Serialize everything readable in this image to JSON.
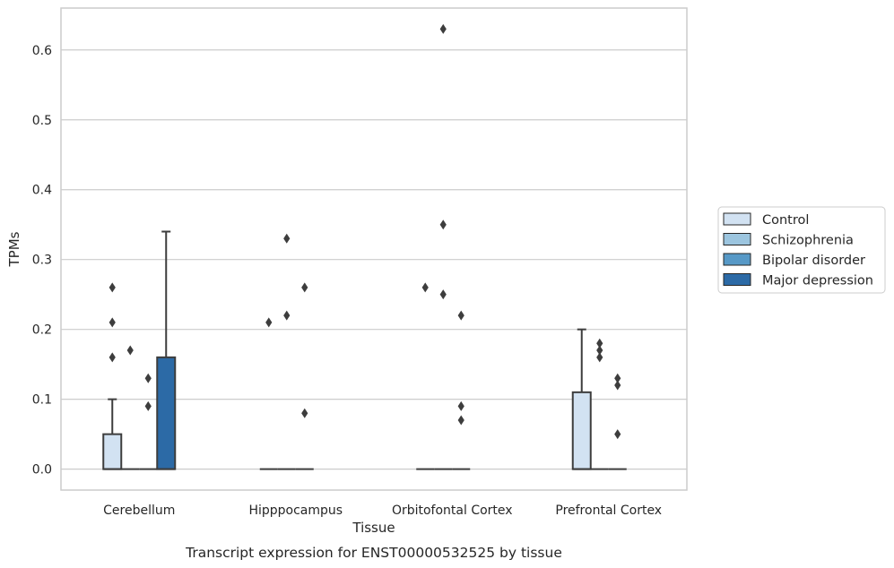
{
  "chart_data": {
    "type": "box",
    "caption": "Transcript expression for ENST00000532525 by tissue",
    "xlabel": "Tissue",
    "ylabel": "TPMs",
    "ylim": [
      -0.03,
      0.66
    ],
    "yticks": [
      0.0,
      0.1,
      0.2,
      0.3,
      0.4,
      0.5,
      0.6
    ],
    "ytick_labels": [
      "0.0",
      "0.1",
      "0.2",
      "0.3",
      "0.4",
      "0.5",
      "0.6"
    ],
    "grid": "horizontal",
    "legend_position": "right",
    "categories": [
      "Cerebellum",
      "Hipppocampus",
      "Orbitofontal Cortex",
      "Prefrontal Cortex"
    ],
    "series": [
      {
        "name": "Control",
        "color": "#d2e2f2",
        "boxes": [
          {
            "q1": 0.0,
            "median": 0.0,
            "q3": 0.05,
            "whisker_low": 0.0,
            "whisker_high": 0.1,
            "outliers": [
              0.16,
              0.21,
              0.26
            ]
          },
          {
            "q1": 0.0,
            "median": 0.0,
            "q3": 0.0,
            "whisker_low": 0.0,
            "whisker_high": 0.0,
            "outliers": [
              0.21
            ]
          },
          {
            "q1": 0.0,
            "median": 0.0,
            "q3": 0.0,
            "whisker_low": 0.0,
            "whisker_high": 0.0,
            "outliers": [
              0.26
            ]
          },
          {
            "q1": 0.0,
            "median": 0.0,
            "q3": 0.11,
            "whisker_low": 0.0,
            "whisker_high": 0.2,
            "outliers": []
          }
        ]
      },
      {
        "name": "Schizophrenia",
        "color": "#9cc5df",
        "boxes": [
          {
            "q1": 0.0,
            "median": 0.0,
            "q3": 0.0,
            "whisker_low": 0.0,
            "whisker_high": 0.0,
            "outliers": [
              0.17
            ]
          },
          {
            "q1": 0.0,
            "median": 0.0,
            "q3": 0.0,
            "whisker_low": 0.0,
            "whisker_high": 0.0,
            "outliers": [
              0.22,
              0.33
            ]
          },
          {
            "q1": 0.0,
            "median": 0.0,
            "q3": 0.0,
            "whisker_low": 0.0,
            "whisker_high": 0.0,
            "outliers": [
              0.25,
              0.35,
              0.63
            ]
          },
          {
            "q1": 0.0,
            "median": 0.0,
            "q3": 0.0,
            "whisker_low": 0.0,
            "whisker_high": 0.0,
            "outliers": [
              0.16,
              0.17,
              0.18
            ]
          }
        ]
      },
      {
        "name": "Bipolar disorder",
        "color": "#5799c7",
        "boxes": [
          {
            "q1": 0.0,
            "median": 0.0,
            "q3": 0.0,
            "whisker_low": 0.0,
            "whisker_high": 0.0,
            "outliers": [
              0.09,
              0.13
            ]
          },
          {
            "q1": 0.0,
            "median": 0.0,
            "q3": 0.0,
            "whisker_low": 0.0,
            "whisker_high": 0.0,
            "outliers": [
              0.08,
              0.26
            ]
          },
          {
            "q1": 0.0,
            "median": 0.0,
            "q3": 0.0,
            "whisker_low": 0.0,
            "whisker_high": 0.0,
            "outliers": [
              0.07,
              0.09,
              0.22
            ]
          },
          {
            "q1": 0.0,
            "median": 0.0,
            "q3": 0.0,
            "whisker_low": 0.0,
            "whisker_high": 0.0,
            "outliers": [
              0.05,
              0.12,
              0.13
            ]
          }
        ]
      },
      {
        "name": "Major depression",
        "color": "#2c6aa6",
        "boxes": [
          {
            "q1": 0.0,
            "median": 0.0,
            "q3": 0.16,
            "whisker_low": 0.0,
            "whisker_high": 0.34,
            "outliers": []
          },
          null,
          null,
          null
        ]
      }
    ]
  }
}
